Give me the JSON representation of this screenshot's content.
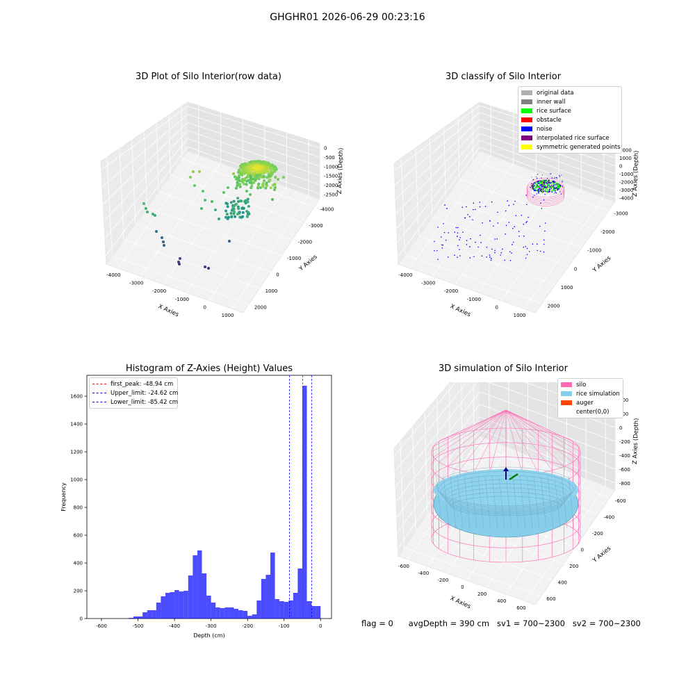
{
  "figure": {
    "suptitle": "GHGHR01 2026-06-29 00:23:16",
    "status": {
      "flag": "flag = 0",
      "avg_depth": "avgDepth = 390 cm",
      "sv1": "sv1 = 700~2300",
      "sv2": "sv2 = 700~2300"
    }
  },
  "chart_data": [
    {
      "type": "scatter",
      "projection": "3d",
      "title": "3D Plot of Silo Interior(row data)",
      "xlabel": "X Axies",
      "ylabel": "Y Axies",
      "zlabel": "Z Axies (Depth)",
      "x_ticks": [
        "-4000",
        "-3000",
        "-2000",
        "-1000",
        "0",
        "1000"
      ],
      "y_ticks": [
        "-4000",
        "-3000",
        "-2000",
        "-1000",
        "0",
        "1000",
        "2000"
      ],
      "z_ticks": [
        "0",
        "-500",
        "-1000",
        "-1500",
        "-2000",
        "-2500"
      ],
      "colormap": "viridis",
      "grid": true
    },
    {
      "type": "scatter",
      "projection": "3d",
      "title": "3D classify of Silo Interior",
      "xlabel": "X Axies",
      "ylabel": "Y Axies",
      "zlabel": "Z Axies (Depth)",
      "x_ticks": [
        "-4000",
        "-3000",
        "-2000",
        "-1000",
        "0",
        "1000"
      ],
      "y_ticks": [
        "-3000",
        "-2000",
        "-1000",
        "0",
        "1000",
        "2000"
      ],
      "z_ticks": [
        "2000",
        "1000",
        "0",
        "-1000",
        "-2000",
        "-3000",
        "-4000"
      ],
      "legend_position": "top-right",
      "legend": [
        {
          "label": "original data",
          "color": "#b0b0b0"
        },
        {
          "label": "inner wall",
          "color": "#808080"
        },
        {
          "label": "rice surface",
          "color": "#00ff00"
        },
        {
          "label": "obstacle",
          "color": "#ff0000"
        },
        {
          "label": "noise",
          "color": "#0000ff"
        },
        {
          "label": "interpolated rice surface",
          "color": "#800080"
        },
        {
          "label": "symmetric generated points",
          "color": "#ffff00"
        }
      ],
      "grid": true
    },
    {
      "type": "bar",
      "title": "Histogram of Z-Axies (Height) Values",
      "xlabel": "Depth (cm)",
      "ylabel": "Frequency",
      "xlim": [
        -640,
        30
      ],
      "ylim": [
        0,
        1750
      ],
      "x_ticks": [
        -600,
        -500,
        -400,
        -300,
        -200,
        -100,
        0
      ],
      "y_ticks": [
        0,
        200,
        400,
        600,
        800,
        1000,
        1200,
        1400,
        1600
      ],
      "bar_color": "#0000ff",
      "bin_width": 12.5,
      "bins_left": [
        -525,
        -512.5,
        -500,
        -487.5,
        -475,
        -462.5,
        -450,
        -437.5,
        -425,
        -412.5,
        -400,
        -387.5,
        -375,
        -362.5,
        -350,
        -337.5,
        -325,
        -312.5,
        -300,
        -287.5,
        -275,
        -262.5,
        -250,
        -237.5,
        -225,
        -212.5,
        -200,
        -187.5,
        -175,
        -162.5,
        -150,
        -137.5,
        -125,
        -112.5,
        -100,
        -87.5,
        -75,
        -62.5,
        -50,
        -37.5,
        -25,
        -12.5
      ],
      "frequencies": [
        5,
        15,
        15,
        45,
        60,
        60,
        115,
        160,
        185,
        190,
        205,
        195,
        200,
        310,
        455,
        490,
        325,
        165,
        115,
        80,
        75,
        80,
        80,
        70,
        60,
        55,
        20,
        30,
        130,
        285,
        315,
        475,
        140,
        125,
        120,
        130,
        185,
        360,
        1675,
        125,
        90,
        90
      ],
      "vlines": [
        {
          "label": "first_peak: -48.94 cm",
          "x": -48.94,
          "color": "#ff0000"
        },
        {
          "label": "Upper_limit: -24.62 cm",
          "x": -24.62,
          "color": "#0000ff"
        },
        {
          "label": "Lower_limit: -85.42 cm",
          "x": -85.42,
          "color": "#0000ff"
        }
      ],
      "legend_position": "top-left"
    },
    {
      "type": "surface",
      "projection": "3d",
      "title": "3D simulation of Silo Interior",
      "xlabel": "X Axies",
      "ylabel": "Y Axies",
      "zlabel": "Z Axies (Depth)",
      "x_ticks": [
        "-600",
        "-400",
        "-200",
        "0",
        "200",
        "400",
        "600"
      ],
      "y_ticks": [
        "-600",
        "-400",
        "-200",
        "0",
        "200",
        "400",
        "600"
      ],
      "z_ticks": [
        "400",
        "200",
        "0",
        "-200",
        "-400",
        "-600",
        "-800"
      ],
      "legend_position": "top-right",
      "legend": [
        {
          "label": "silo",
          "color": "#ff69b4"
        },
        {
          "label": "rice simulation",
          "color": "#87ceeb"
        },
        {
          "label": "auger",
          "color": "#ff4500"
        },
        {
          "label": "center(0,0)",
          "color": "#ffffff"
        }
      ],
      "grid": true
    }
  ]
}
